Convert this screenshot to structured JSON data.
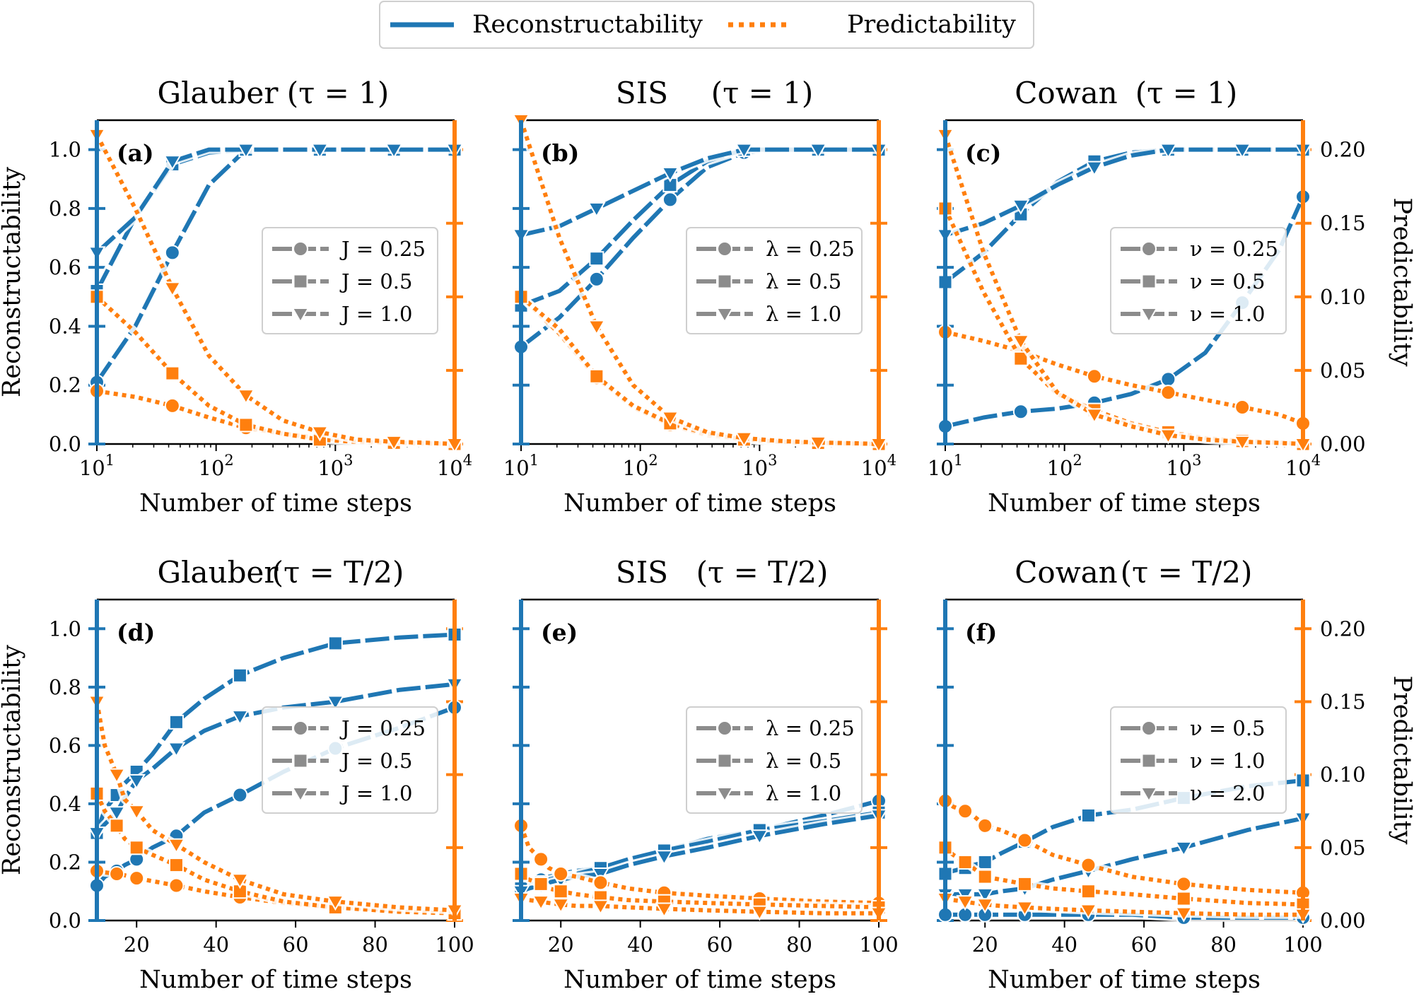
{
  "legend": {
    "entries": [
      {
        "label": "Reconstructability",
        "color": "#1f77b4",
        "style": "solid"
      },
      {
        "label": "Predictability",
        "color": "#ff7f0e",
        "style": "dotted"
      }
    ]
  },
  "axis_text": {
    "xlabel": "Number of time steps",
    "ylabel_left": "Reconstructability",
    "ylabel_right": "Predictability"
  },
  "colors": {
    "recon": "#1f77b4",
    "pred": "#ff7f0e",
    "legend_gray": "#8c8c8c"
  },
  "chart_data": [
    {
      "type": "line",
      "panel": "(a)",
      "title_name": "Glauber",
      "title_param": "(τ = 1)",
      "xscale": "log",
      "xlim": [
        10,
        10000
      ],
      "xticks": [
        {
          "v": 10,
          "e": "1"
        },
        {
          "v": 100,
          "e": "2"
        },
        {
          "v": 1000,
          "e": "3"
        },
        {
          "v": 10000,
          "e": "4"
        }
      ],
      "ylim_left": [
        0,
        1.1
      ],
      "ylim_right": [
        0,
        0.22
      ],
      "yticks_left": [
        "0.0",
        "0.2",
        "0.4",
        "0.6",
        "0.8",
        "1.0"
      ],
      "yticks_right": [],
      "show_left_labels": true,
      "show_right_labels": false,
      "legend": {
        "entries": [
          "J = 0.25",
          "J = 0.5",
          "J = 1.0"
        ],
        "position": "center-right"
      },
      "x": [
        10,
        21,
        43,
        87,
        178,
        363,
        741,
        1516,
        3098,
        6332,
        10000
      ],
      "series": [
        {
          "metric": "Reconstructability",
          "marker": "circle",
          "values": [
            0.21,
            0.4,
            0.65,
            0.88,
            1.0,
            1.0,
            1.0,
            1.0,
            1.0,
            1.0,
            1.0
          ]
        },
        {
          "metric": "Reconstructability",
          "marker": "square",
          "values": [
            0.52,
            0.77,
            0.95,
            0.99,
            1.0,
            1.0,
            1.0,
            1.0,
            1.0,
            1.0,
            1.0
          ]
        },
        {
          "metric": "Reconstructability",
          "marker": "triangle",
          "values": [
            0.65,
            0.77,
            0.96,
            1.0,
            1.0,
            1.0,
            1.0,
            1.0,
            1.0,
            1.0,
            1.0
          ]
        },
        {
          "metric": "Predictability",
          "marker": "circle",
          "values": [
            0.036,
            0.032,
            0.026,
            0.018,
            0.011,
            0.007,
            0.004,
            0.002,
            0.001,
            0.0005,
            0.0
          ]
        },
        {
          "metric": "Predictability",
          "marker": "square",
          "values": [
            0.1,
            0.076,
            0.048,
            0.026,
            0.013,
            0.007,
            0.003,
            0.0015,
            0.0008,
            0.0004,
            0.0
          ]
        },
        {
          "metric": "Predictability",
          "marker": "triangle",
          "values": [
            0.21,
            0.16,
            0.106,
            0.06,
            0.033,
            0.016,
            0.008,
            0.003,
            0.0015,
            0.0007,
            0.0
          ]
        }
      ]
    },
    {
      "type": "line",
      "panel": "(b)",
      "title_name": "SIS",
      "title_param": "(τ = 1)",
      "xscale": "log",
      "xlim": [
        10,
        10000
      ],
      "xticks": [
        {
          "v": 10,
          "e": "1"
        },
        {
          "v": 100,
          "e": "2"
        },
        {
          "v": 1000,
          "e": "3"
        },
        {
          "v": 10000,
          "e": "4"
        }
      ],
      "ylim_left": [
        0,
        1.1
      ],
      "ylim_right": [
        0,
        0.22
      ],
      "yticks_left": [],
      "yticks_right": [],
      "show_left_labels": false,
      "show_right_labels": false,
      "legend": {
        "entries": [
          "λ = 0.25",
          "λ = 0.5",
          "λ = 1.0"
        ],
        "position": "center-right"
      },
      "x": [
        10,
        21,
        43,
        87,
        178,
        363,
        741,
        1516,
        3098,
        6332,
        10000
      ],
      "series": [
        {
          "metric": "Reconstructability",
          "marker": "circle",
          "values": [
            0.33,
            0.43,
            0.56,
            0.7,
            0.83,
            0.94,
            0.99,
            1.0,
            1.0,
            1.0,
            1.0
          ]
        },
        {
          "metric": "Reconstructability",
          "marker": "square",
          "values": [
            0.47,
            0.52,
            0.63,
            0.76,
            0.88,
            0.96,
            1.0,
            1.0,
            1.0,
            1.0,
            1.0
          ]
        },
        {
          "metric": "Reconstructability",
          "marker": "triangle",
          "values": [
            0.71,
            0.74,
            0.8,
            0.86,
            0.92,
            0.97,
            1.0,
            1.0,
            1.0,
            1.0,
            1.0
          ]
        },
        {
          "metric": "Predictability",
          "marker": "circle",
          "values": [
            0.1,
            0.075,
            0.045,
            0.025,
            0.013,
            0.006,
            0.003,
            0.0015,
            0.0007,
            0.0003,
            0.0
          ]
        },
        {
          "metric": "Predictability",
          "marker": "square",
          "values": [
            0.1,
            0.078,
            0.046,
            0.026,
            0.014,
            0.007,
            0.003,
            0.0015,
            0.0007,
            0.0003,
            0.0
          ]
        },
        {
          "metric": "Predictability",
          "marker": "triangle",
          "values": [
            0.22,
            0.14,
            0.08,
            0.04,
            0.018,
            0.008,
            0.004,
            0.002,
            0.001,
            0.0005,
            0.0
          ]
        }
      ]
    },
    {
      "type": "line",
      "panel": "(c)",
      "title_name": "Cowan",
      "title_param": "(τ = 1)",
      "xscale": "log",
      "xlim": [
        10,
        10000
      ],
      "xticks": [
        {
          "v": 10,
          "e": "1"
        },
        {
          "v": 100,
          "e": "2"
        },
        {
          "v": 1000,
          "e": "3"
        },
        {
          "v": 10000,
          "e": "4"
        }
      ],
      "ylim_left": [
        0,
        1.1
      ],
      "ylim_right": [
        0,
        0.22
      ],
      "yticks_left": [],
      "yticks_right": [
        "0.00",
        "0.05",
        "0.10",
        "0.15",
        "0.20"
      ],
      "show_left_labels": false,
      "show_right_labels": true,
      "legend": {
        "entries": [
          "ν = 0.25",
          "ν = 0.5",
          "ν = 1.0"
        ],
        "position": "center-right"
      },
      "x": [
        10,
        21,
        43,
        87,
        178,
        363,
        741,
        1516,
        3098,
        6332,
        10000
      ],
      "series": [
        {
          "metric": "Reconstructability",
          "marker": "circle",
          "values": [
            0.06,
            0.09,
            0.11,
            0.12,
            0.14,
            0.17,
            0.22,
            0.31,
            0.48,
            0.66,
            0.84
          ]
        },
        {
          "metric": "Reconstructability",
          "marker": "square",
          "values": [
            0.55,
            0.65,
            0.78,
            0.89,
            0.96,
            0.99,
            1.0,
            1.0,
            1.0,
            1.0,
            1.0
          ]
        },
        {
          "metric": "Reconstructability",
          "marker": "triangle",
          "values": [
            0.71,
            0.75,
            0.81,
            0.88,
            0.94,
            0.98,
            1.0,
            1.0,
            1.0,
            1.0,
            1.0
          ]
        },
        {
          "metric": "Predictability",
          "marker": "circle",
          "values": [
            0.076,
            0.07,
            0.063,
            0.054,
            0.046,
            0.04,
            0.035,
            0.03,
            0.025,
            0.02,
            0.014
          ]
        },
        {
          "metric": "Predictability",
          "marker": "square",
          "values": [
            0.16,
            0.103,
            0.058,
            0.034,
            0.023,
            0.014,
            0.008,
            0.004,
            0.002,
            0.001,
            0.0
          ]
        },
        {
          "metric": "Predictability",
          "marker": "triangle",
          "values": [
            0.21,
            0.13,
            0.07,
            0.035,
            0.02,
            0.012,
            0.006,
            0.003,
            0.0015,
            0.0007,
            0.0
          ]
        }
      ]
    },
    {
      "type": "line",
      "panel": "(d)",
      "title_name": "Glauber",
      "title_param": "(τ = T/2)",
      "xscale": "linear",
      "xlim": [
        10,
        100
      ],
      "xticks": [
        {
          "v": 20,
          "t": "20"
        },
        {
          "v": 40,
          "t": "40"
        },
        {
          "v": 60,
          "t": "60"
        },
        {
          "v": 80,
          "t": "80"
        },
        {
          "v": 100,
          "t": "100"
        }
      ],
      "ylim_left": [
        0,
        1.1
      ],
      "ylim_right": [
        0,
        0.22
      ],
      "yticks_left": [
        "0.0",
        "0.2",
        "0.4",
        "0.6",
        "0.8",
        "1.0"
      ],
      "yticks_right": [],
      "show_left_labels": true,
      "show_right_labels": false,
      "legend": {
        "entries": [
          "J = 0.25",
          "J = 0.5",
          "J = 1.0"
        ],
        "position": "center-right"
      },
      "x": [
        10,
        12,
        15,
        17,
        20,
        24,
        30,
        37,
        46,
        57,
        70,
        86,
        100
      ],
      "series": [
        {
          "metric": "Reconstructability",
          "marker": "circle",
          "values": [
            0.12,
            0.15,
            0.17,
            0.19,
            0.21,
            0.25,
            0.29,
            0.37,
            0.43,
            0.51,
            0.59,
            0.66,
            0.73
          ]
        },
        {
          "metric": "Reconstructability",
          "marker": "square",
          "values": [
            0.3,
            0.38,
            0.43,
            0.47,
            0.51,
            0.57,
            0.68,
            0.76,
            0.84,
            0.9,
            0.95,
            0.97,
            0.98
          ]
        },
        {
          "metric": "Reconstructability",
          "marker": "triangle",
          "values": [
            0.3,
            0.33,
            0.37,
            0.42,
            0.48,
            0.52,
            0.59,
            0.65,
            0.7,
            0.73,
            0.75,
            0.79,
            0.81
          ]
        },
        {
          "metric": "Predictability",
          "marker": "circle",
          "values": [
            0.034,
            0.033,
            0.032,
            0.031,
            0.029,
            0.027,
            0.024,
            0.02,
            0.016,
            0.012,
            0.009,
            0.007,
            0.006
          ]
        },
        {
          "metric": "Predictability",
          "marker": "square",
          "values": [
            0.087,
            0.075,
            0.065,
            0.056,
            0.05,
            0.045,
            0.038,
            0.028,
            0.02,
            0.013,
            0.009,
            0.006,
            0.005
          ]
        },
        {
          "metric": "Predictability",
          "marker": "triangle",
          "values": [
            0.15,
            0.12,
            0.1,
            0.083,
            0.075,
            0.062,
            0.052,
            0.04,
            0.028,
            0.018,
            0.013,
            0.009,
            0.007
          ]
        }
      ]
    },
    {
      "type": "line",
      "panel": "(e)",
      "title_name": "SIS",
      "title_param": "(τ = T/2)",
      "xscale": "linear",
      "xlim": [
        10,
        100
      ],
      "xticks": [
        {
          "v": 20,
          "t": "20"
        },
        {
          "v": 40,
          "t": "40"
        },
        {
          "v": 60,
          "t": "60"
        },
        {
          "v": 80,
          "t": "80"
        },
        {
          "v": 100,
          "t": "100"
        }
      ],
      "ylim_left": [
        0,
        1.1
      ],
      "ylim_right": [
        0,
        0.22
      ],
      "yticks_left": [],
      "yticks_right": [],
      "show_left_labels": false,
      "show_right_labels": false,
      "legend": {
        "entries": [
          "λ = 0.25",
          "λ = 0.5",
          "λ = 1.0"
        ],
        "position": "center-right"
      },
      "x": [
        10,
        12,
        15,
        17,
        20,
        24,
        30,
        37,
        46,
        57,
        70,
        86,
        100
      ],
      "series": [
        {
          "metric": "Reconstructability",
          "marker": "circle",
          "values": [
            0.12,
            0.13,
            0.14,
            0.15,
            0.16,
            0.17,
            0.18,
            0.2,
            0.24,
            0.28,
            0.31,
            0.36,
            0.41
          ]
        },
        {
          "metric": "Reconstructability",
          "marker": "square",
          "values": [
            0.11,
            0.12,
            0.13,
            0.14,
            0.15,
            0.16,
            0.18,
            0.21,
            0.24,
            0.27,
            0.31,
            0.34,
            0.37
          ]
        },
        {
          "metric": "Reconstructability",
          "marker": "triangle",
          "values": [
            0.1,
            0.11,
            0.12,
            0.13,
            0.14,
            0.15,
            0.16,
            0.19,
            0.22,
            0.25,
            0.29,
            0.33,
            0.36
          ]
        },
        {
          "metric": "Predictability",
          "marker": "circle",
          "values": [
            0.065,
            0.05,
            0.042,
            0.036,
            0.032,
            0.03,
            0.026,
            0.022,
            0.019,
            0.017,
            0.015,
            0.013,
            0.012
          ]
        },
        {
          "metric": "Predictability",
          "marker": "square",
          "values": [
            0.032,
            0.028,
            0.025,
            0.022,
            0.02,
            0.018,
            0.016,
            0.014,
            0.013,
            0.012,
            0.011,
            0.01,
            0.009
          ]
        },
        {
          "metric": "Predictability",
          "marker": "triangle",
          "values": [
            0.015,
            0.014,
            0.013,
            0.012,
            0.011,
            0.01,
            0.01,
            0.009,
            0.008,
            0.007,
            0.006,
            0.005,
            0.005
          ]
        }
      ]
    },
    {
      "type": "line",
      "panel": "(f)",
      "title_name": "Cowan",
      "title_param": "(τ = T/2)",
      "xscale": "linear",
      "xlim": [
        10,
        100
      ],
      "xticks": [
        {
          "v": 20,
          "t": "20"
        },
        {
          "v": 40,
          "t": "40"
        },
        {
          "v": 60,
          "t": "60"
        },
        {
          "v": 80,
          "t": "80"
        },
        {
          "v": 100,
          "t": "100"
        }
      ],
      "ylim_left": [
        0,
        1.1
      ],
      "ylim_right": [
        0,
        0.22
      ],
      "yticks_left": [],
      "yticks_right": [
        "0.00",
        "0.05",
        "0.10",
        "0.15",
        "0.20"
      ],
      "show_left_labels": false,
      "show_right_labels": true,
      "legend": {
        "entries": [
          "ν = 0.5",
          "ν = 1.0",
          "ν = 2.0"
        ],
        "position": "center-right"
      },
      "x": [
        10,
        12,
        15,
        17,
        20,
        24,
        30,
        37,
        46,
        57,
        70,
        86,
        100
      ],
      "series": [
        {
          "metric": "Reconstructability",
          "marker": "circle",
          "values": [
            0.02,
            0.02,
            0.02,
            0.02,
            0.02,
            0.02,
            0.02,
            0.02,
            0.02,
            0.02,
            0.01,
            0.01,
            0.01
          ]
        },
        {
          "metric": "Reconstructability",
          "marker": "square",
          "values": [
            0.16,
            0.17,
            0.18,
            0.19,
            0.2,
            0.23,
            0.27,
            0.32,
            0.36,
            0.38,
            0.42,
            0.46,
            0.48
          ]
        },
        {
          "metric": "Reconstructability",
          "marker": "triangle",
          "values": [
            0.09,
            0.09,
            0.09,
            0.09,
            0.09,
            0.1,
            0.11,
            0.14,
            0.17,
            0.21,
            0.25,
            0.31,
            0.35
          ]
        },
        {
          "metric": "Predictability",
          "marker": "circle",
          "values": [
            0.082,
            0.078,
            0.075,
            0.072,
            0.065,
            0.062,
            0.055,
            0.045,
            0.038,
            0.03,
            0.025,
            0.021,
            0.019
          ]
        },
        {
          "metric": "Predictability",
          "marker": "square",
          "values": [
            0.05,
            0.045,
            0.04,
            0.036,
            0.03,
            0.028,
            0.025,
            0.022,
            0.02,
            0.018,
            0.015,
            0.012,
            0.011
          ]
        },
        {
          "metric": "Predictability",
          "marker": "triangle",
          "values": [
            0.015,
            0.014,
            0.013,
            0.012,
            0.011,
            0.01,
            0.009,
            0.008,
            0.007,
            0.006,
            0.005,
            0.004,
            0.004
          ]
        }
      ]
    }
  ]
}
